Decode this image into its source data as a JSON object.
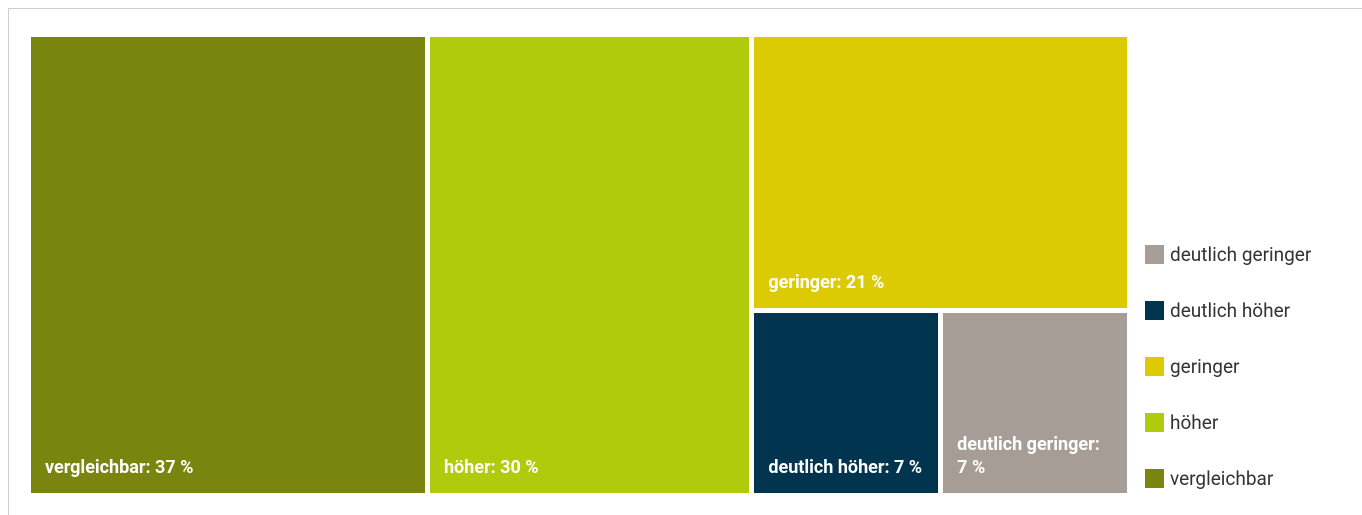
{
  "chart_data": {
    "type": "treemap",
    "categories": [
      "vergleichbar",
      "höher",
      "geringer",
      "deutlich höher",
      "deutlich geringer"
    ],
    "values": [
      37,
      30,
      21,
      7,
      7
    ],
    "value_labels": [
      "vergleichbar: 37 %",
      "höher: 30 %",
      "geringer: 21 %",
      "deutlich höher: 7 %",
      "deutlich geringer: 7 %"
    ],
    "colors": [
      "#7a8510",
      "#b0cb0b",
      "#dccb03",
      "#00344f",
      "#a69e96"
    ],
    "legend": "right"
  }
}
